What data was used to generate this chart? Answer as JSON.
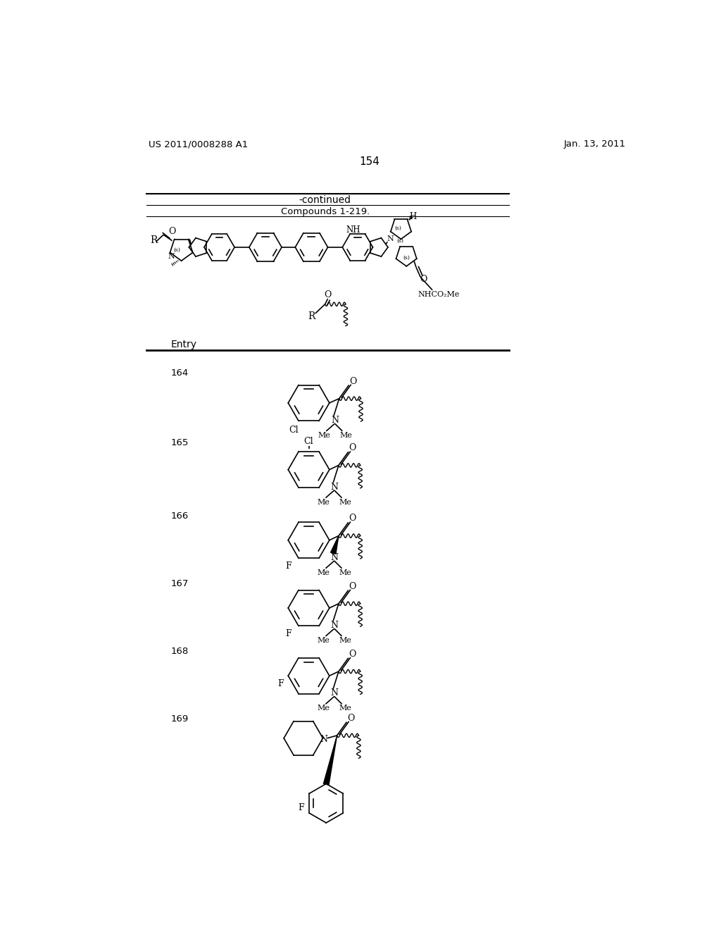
{
  "page_number": "154",
  "patent_left": "US 2011/0008288 A1",
  "patent_date": "Jan. 13, 2011",
  "bg": "#ffffff",
  "header_text": "-continued",
  "table_header": "Compounds 1-219.",
  "entry_label": "Entry",
  "entries": [
    "164",
    "165",
    "166",
    "167",
    "168",
    "169"
  ],
  "line_color": "#000000",
  "font_family": "DejaVu Serif"
}
